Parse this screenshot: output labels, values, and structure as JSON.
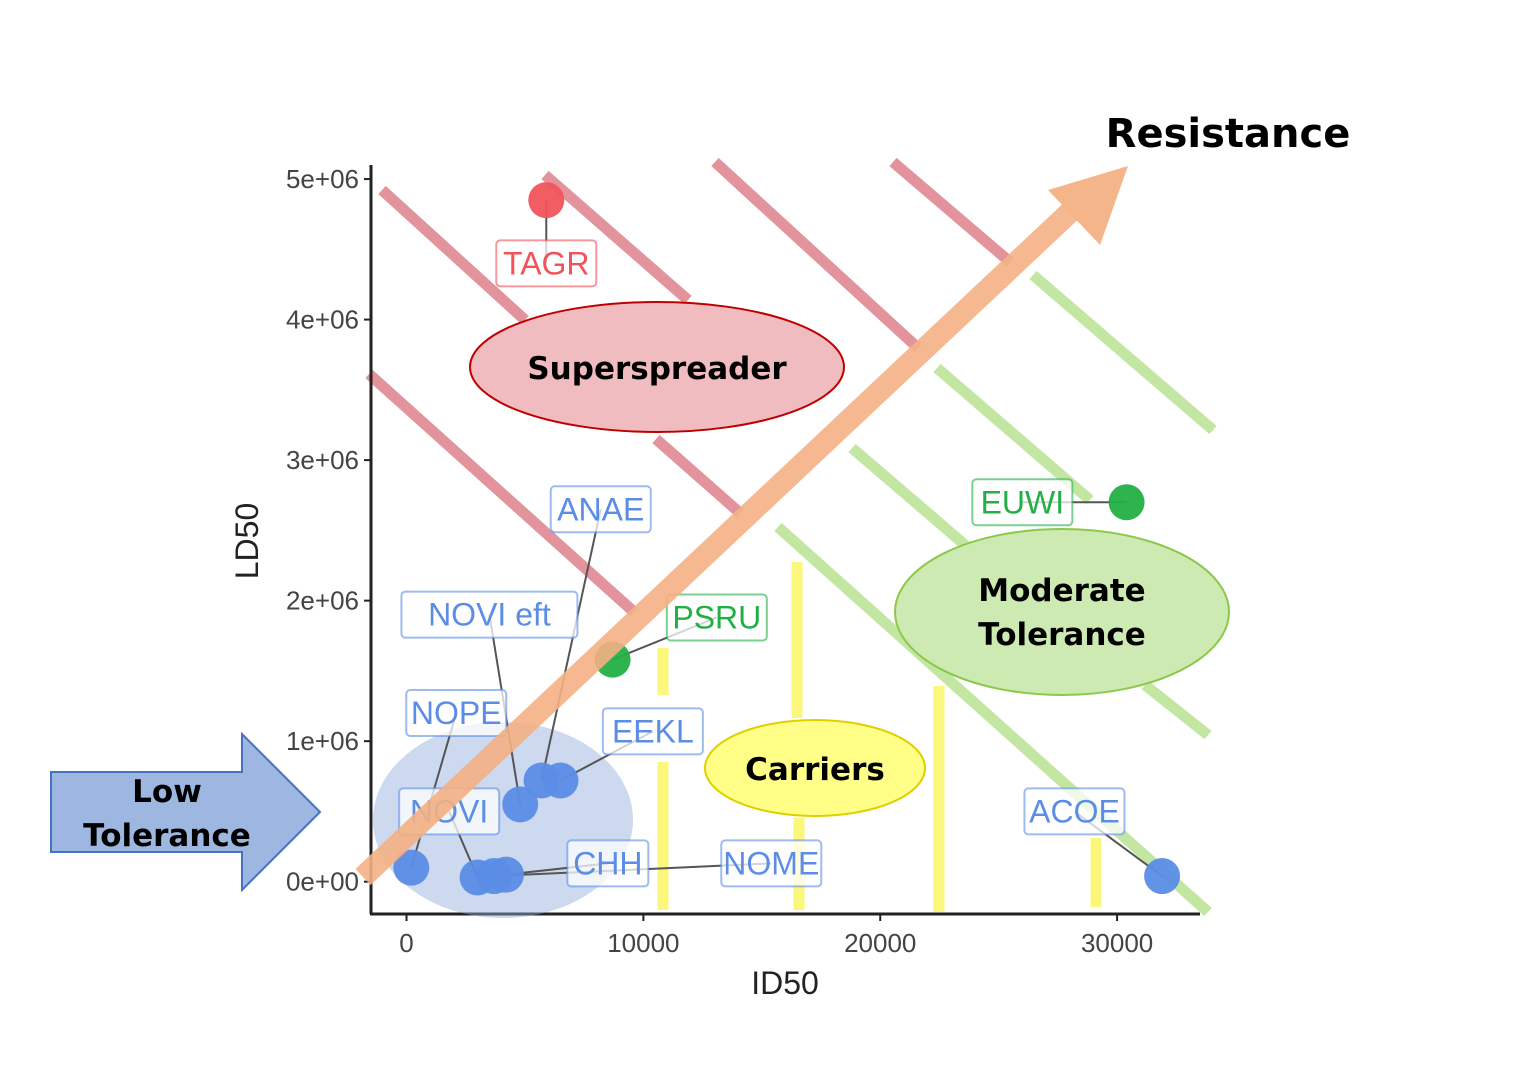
{
  "chart_data": {
    "type": "scatter",
    "xlabel": "ID50",
    "ylabel": "LD50",
    "xlim": [
      -1500,
      33500
    ],
    "ylim": [
      -230000,
      5100000
    ],
    "x_ticks": [
      {
        "value": 0,
        "label": "0"
      },
      {
        "value": 10000,
        "label": "10000"
      },
      {
        "value": 20000,
        "label": "20000"
      },
      {
        "value": 30000,
        "label": "30000"
      }
    ],
    "y_ticks": [
      {
        "value": 0,
        "label": "0e+00"
      },
      {
        "value": 1000000,
        "label": "1e+06"
      },
      {
        "value": 2000000,
        "label": "2e+06"
      },
      {
        "value": 3000000,
        "label": "3e+06"
      },
      {
        "value": 4000000,
        "label": "4e+06"
      },
      {
        "value": 5000000,
        "label": "5e+06"
      }
    ],
    "grid": false,
    "points": [
      {
        "label": "TAGR",
        "x": 5900,
        "y": 4850000,
        "group": "red",
        "label_x": 5900,
        "label_y": 4400000
      },
      {
        "label": "ANAE",
        "x": 5700,
        "y": 720000,
        "group": "blue",
        "label_x": 8200,
        "label_y": 2650000
      },
      {
        "label": "NOVI eft",
        "x": 4800,
        "y": 550000,
        "group": "blue",
        "label_x": 3500,
        "label_y": 1900000
      },
      {
        "label": "PSRU",
        "x": 8700,
        "y": 1580000,
        "group": "green",
        "label_x": 13100,
        "label_y": 1880000
      },
      {
        "label": "NOPE",
        "x": 200,
        "y": 100000,
        "group": "blue",
        "label_x": 2100,
        "label_y": 1200000
      },
      {
        "label": "EEKL",
        "x": 6500,
        "y": 720000,
        "group": "blue",
        "label_x": 10400,
        "label_y": 1070000
      },
      {
        "label": "NOVI",
        "x": 3000,
        "y": 30000,
        "group": "blue",
        "label_x": 1800,
        "label_y": 500000
      },
      {
        "label": "CHH",
        "x": 4200,
        "y": 50000,
        "group": "blue",
        "label_x": 8500,
        "label_y": 130000
      },
      {
        "label": "NOME",
        "x": 3700,
        "y": 40000,
        "group": "blue",
        "label_x": 15400,
        "label_y": 130000
      },
      {
        "label": "EUWI",
        "x": 30400,
        "y": 2700000,
        "group": "green",
        "label_x": 26000,
        "label_y": 2700000
      },
      {
        "label": "ACOE",
        "x": 31900,
        "y": 40000,
        "group": "blue",
        "label_x": 28200,
        "label_y": 500000
      }
    ],
    "group_colors": {
      "red": "#f0545a",
      "blue": "#5b8de6",
      "green": "#22b046"
    }
  },
  "overlays": {
    "resistance_label": "Resistance",
    "superspreader_label": "Superspreader",
    "moderate_line1": "Moderate",
    "moderate_line2": "Tolerance",
    "carriers_label": "Carriers",
    "low_line1": "Low",
    "low_line2": "Tolerance",
    "colors": {
      "red_band": "#d9707a",
      "green_band": "#b5e08d",
      "yellow_band": "#fbf77a",
      "arrow": "#f4b184",
      "superspreader_fill": "#f0bcbf",
      "superspreader_stroke": "#c00000",
      "moderate_fill": "#cdeab2",
      "moderate_stroke": "#8cc84b",
      "carriers_fill": "#ffff88",
      "carriers_stroke": "#e0d000",
      "low_arrow_fill": "#9db7e0",
      "low_arrow_stroke": "#4472c4",
      "low_circle": "#8faadc"
    }
  }
}
